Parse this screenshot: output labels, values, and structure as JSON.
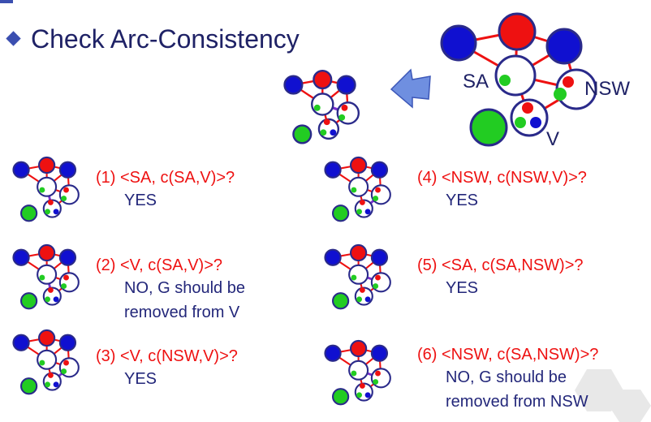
{
  "slide": {
    "title": "Check Arc-Consistency",
    "colors": {
      "title": "#1f2266",
      "question": "#ee1111",
      "answer": "#23277a",
      "blue": "#1010d0",
      "red": "#ee1111",
      "green": "#22cc22",
      "edge": "#ee1111",
      "highlight": "#7a2fd0",
      "arrow": "#6f8fe0"
    }
  },
  "big_graph": {
    "labels": {
      "sa": "SA",
      "nsw": "NSW",
      "v": "V"
    }
  },
  "steps": [
    {
      "question": "(1) <SA, c(SA,V)>?",
      "answer_lines": [
        "YES"
      ]
    },
    {
      "question": "(2) <V, c(SA,V)>?",
      "answer_lines": [
        "NO, G should be",
        "removed from V"
      ]
    },
    {
      "question": "(3) <V, c(NSW,V)>?",
      "answer_lines": [
        "YES"
      ]
    },
    {
      "question": "(4) <NSW, c(NSW,V)>?",
      "answer_lines": [
        "YES"
      ]
    },
    {
      "question": "(5) <SA, c(SA,NSW)>?",
      "answer_lines": [
        "YES"
      ]
    },
    {
      "question": "(6) <NSW, c(SA,NSW)>?",
      "answer_lines": [
        "NO, G should be",
        "removed from NSW"
      ]
    }
  ]
}
